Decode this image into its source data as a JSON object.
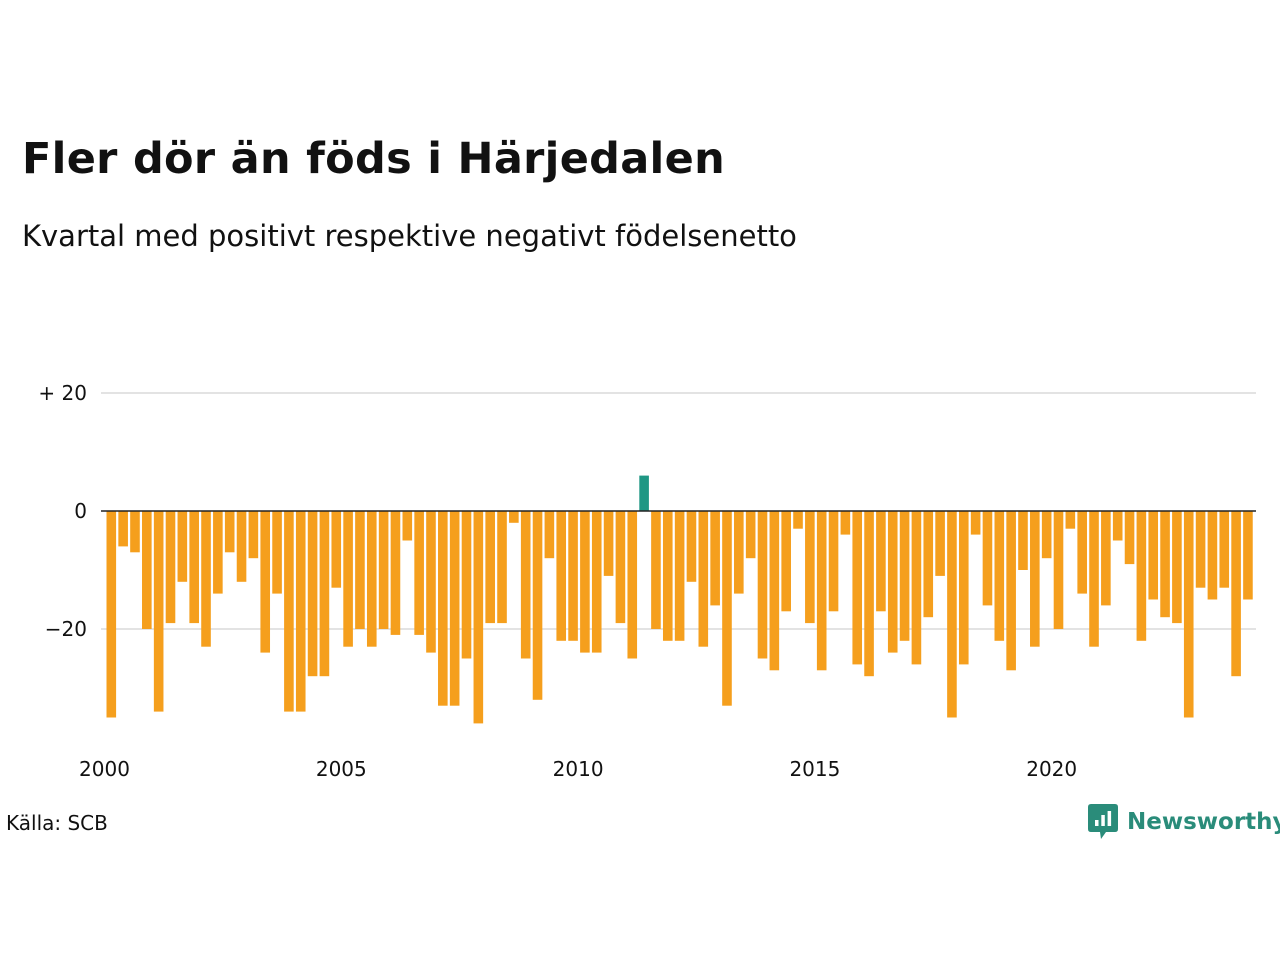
{
  "header": {
    "title": "Fler dör än föds i Härjedalen",
    "subtitle": "Kvartal med positivt respektive negativt födelsenetto"
  },
  "footer": {
    "source": "Källa: SCB",
    "logo_text": "Newsworthy",
    "logo_icon": "newsworthy-chart-bubble-icon"
  },
  "colors": {
    "negative": "#f59f1d",
    "positive": "#1f9784",
    "grid": "#e3e3e3",
    "zero_line": "#222222",
    "logo": "#2a8c7a"
  },
  "chart_data": {
    "type": "bar",
    "title": "Fler dör än föds i Härjedalen",
    "subtitle": "Kvartal med positivt respektive negativt födelsenetto",
    "xlabel": "",
    "ylabel": "",
    "x_start": "2000 Q1",
    "x_ticks": [
      {
        "year": 2000,
        "label": "2000"
      },
      {
        "year": 2005,
        "label": "2005"
      },
      {
        "year": 2010,
        "label": "2010"
      },
      {
        "year": 2015,
        "label": "2015"
      },
      {
        "year": 2020,
        "label": "2020"
      }
    ],
    "y_ticks": [
      {
        "value": 20,
        "label": "+ 20"
      },
      {
        "value": 0,
        "label": "0"
      },
      {
        "value": -20,
        "label": "−20"
      }
    ],
    "ylim": [
      -37,
      20
    ],
    "grid": true,
    "values": [
      -35,
      -6,
      -7,
      -20,
      -34,
      -19,
      -12,
      -19,
      -23,
      -14,
      -7,
      -12,
      -8,
      -24,
      -14,
      -34,
      -34,
      -28,
      -28,
      -13,
      -23,
      -20,
      -23,
      -20,
      -21,
      -5,
      -21,
      -24,
      -33,
      -33,
      -25,
      -36,
      -19,
      -19,
      -2,
      -25,
      -32,
      -8,
      -22,
      -22,
      -24,
      -24,
      -11,
      -19,
      -25,
      6,
      -20,
      -22,
      -22,
      -12,
      -23,
      -16,
      -33,
      -14,
      -8,
      -25,
      -27,
      -17,
      -3,
      -19,
      -27,
      -17,
      -4,
      -26,
      -28,
      -17,
      -24,
      -22,
      -26,
      -18,
      -11,
      -35,
      -26,
      -4,
      -16,
      -22,
      -27,
      -10,
      -23,
      -8,
      -20,
      -3,
      -14,
      -23,
      -16,
      -5,
      -9,
      -22,
      -15,
      -18,
      -19,
      -35,
      -13,
      -15,
      -13,
      -28,
      -15
    ]
  }
}
